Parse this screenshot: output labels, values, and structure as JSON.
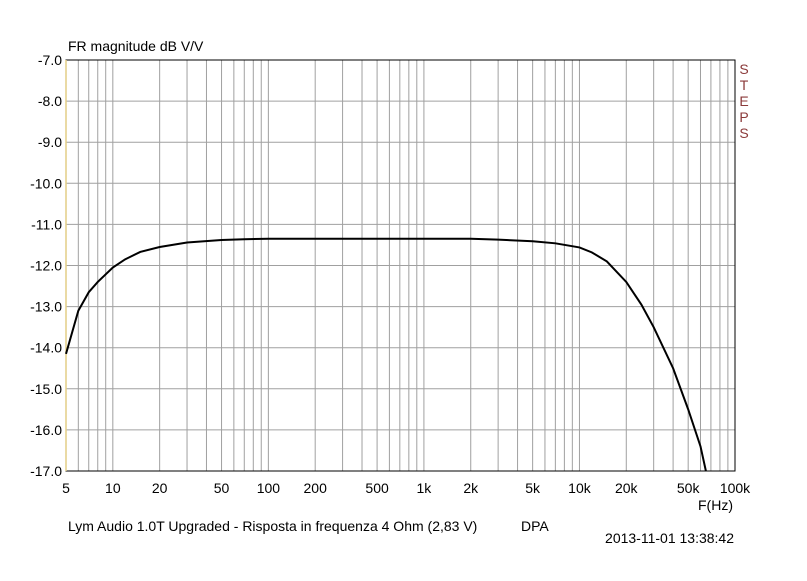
{
  "chart_data": {
    "type": "line",
    "title": "FR magnitude dB V/V",
    "xlabel": "F(Hz)",
    "ylabel": "",
    "x_scale": "log",
    "xlim": [
      5,
      100000
    ],
    "ylim": [
      -17,
      -7
    ],
    "grid": true,
    "x_tick_values": [
      5,
      10,
      20,
      50,
      100,
      200,
      500,
      1000,
      2000,
      5000,
      10000,
      20000,
      50000,
      100000
    ],
    "x_tick_labels": [
      "5",
      "10",
      "20",
      "50",
      "100",
      "200",
      "500",
      "1k",
      "2k",
      "5k",
      "10k",
      "20k",
      "50k",
      "100k"
    ],
    "y_tick_values": [
      -7,
      -8,
      -9,
      -10,
      -11,
      -12,
      -13,
      -14,
      -15,
      -16,
      -17
    ],
    "y_tick_labels": [
      "-7.0",
      "-8.0",
      "-9.0",
      "-10.0",
      "-11.0",
      "-12.0",
      "-13.0",
      "-14.0",
      "-15.0",
      "-16.0",
      "-17.0"
    ],
    "series": [
      {
        "color": "#000000",
        "x": [
          5,
          6,
          7,
          8,
          10,
          12,
          15,
          20,
          30,
          50,
          70,
          100,
          200,
          500,
          1000,
          2000,
          3000,
          5000,
          7000,
          10000,
          12000,
          15000,
          20000,
          25000,
          30000,
          40000,
          50000,
          60000,
          65000
        ],
        "y": [
          -14.15,
          -13.1,
          -12.65,
          -12.4,
          -12.05,
          -11.85,
          -11.67,
          -11.55,
          -11.44,
          -11.38,
          -11.36,
          -11.35,
          -11.35,
          -11.35,
          -11.35,
          -11.35,
          -11.37,
          -11.41,
          -11.46,
          -11.56,
          -11.68,
          -11.9,
          -12.4,
          -12.95,
          -13.5,
          -14.5,
          -15.5,
          -16.4,
          -17.0
        ]
      }
    ],
    "right_label": "STEPS",
    "right_label_color": "#8b3a3a",
    "left_axis_line_color": "#e3cd86",
    "caption": "Lym Audio 1.0T Upgraded - Risposta in frequenza 4 Ohm (2,83 V)",
    "tag": "DPA",
    "timestamp": "2013-11-01 13:38:42"
  }
}
